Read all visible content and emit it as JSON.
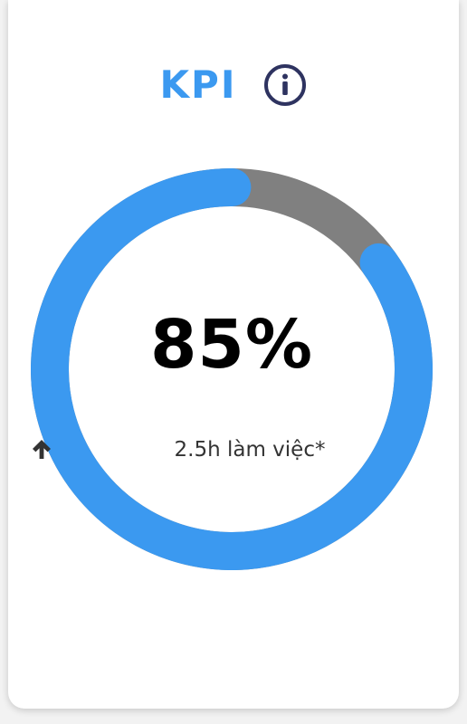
{
  "kpi_card": {
    "title": "KPI",
    "value_text": "85%",
    "progress_percent": 85,
    "trend_text": "2.5h làm việc*",
    "icons": {
      "info": "info-circle-icon",
      "trend": "arrow-up-icon"
    },
    "colors": {
      "accent": "#3b99f0",
      "track": "#808080",
      "info_icon": "#2e3360",
      "value_text": "#000000",
      "trend_text": "#333333"
    }
  }
}
